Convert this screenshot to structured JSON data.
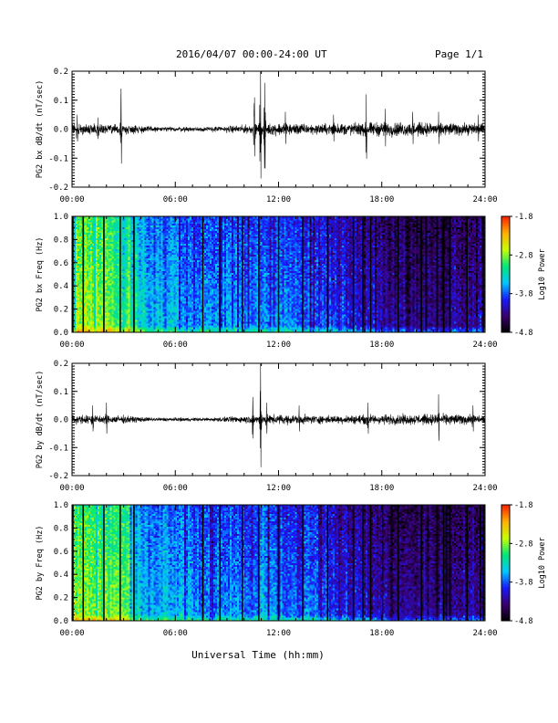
{
  "header": {
    "title": "2016/04/07  00:00-24:00 UT",
    "page": "Page 1/1"
  },
  "xaxis": {
    "label": "Universal Time (hh:mm)",
    "range_hours": [
      0,
      24
    ],
    "tick_labels": [
      "00:00",
      "06:00",
      "12:00",
      "18:00",
      "24:00"
    ]
  },
  "chart_data": [
    {
      "type": "line",
      "id": "bx-dbdt",
      "ylabel": "PG2 bx dB/dt (nT/sec)",
      "ylim": [
        -0.2,
        0.2
      ],
      "yticks": [
        "-0.2",
        "-0.1",
        "0.0",
        "0.1",
        "0.2"
      ],
      "bursts": [
        {
          "t": 0.3,
          "a": 0.05
        },
        {
          "t": 1.5,
          "a": 0.04
        },
        {
          "t": 2.85,
          "a": 0.14
        },
        {
          "t": 10.6,
          "a": 0.11
        },
        {
          "t": 10.95,
          "a": 0.2
        },
        {
          "t": 11.2,
          "a": 0.16
        },
        {
          "t": 12.4,
          "a": 0.06
        },
        {
          "t": 15.2,
          "a": 0.05
        },
        {
          "t": 17.1,
          "a": 0.12
        },
        {
          "t": 18.2,
          "a": 0.07
        },
        {
          "t": 19.8,
          "a": 0.06
        },
        {
          "t": 21.3,
          "a": 0.06
        },
        {
          "t": 23.6,
          "a": 0.05
        }
      ],
      "noise_envelope": [
        [
          0,
          0.02
        ],
        [
          2,
          0.02
        ],
        [
          3.5,
          0.018
        ],
        [
          5,
          0.01
        ],
        [
          8,
          0.01
        ],
        [
          10,
          0.016
        ],
        [
          12,
          0.025
        ],
        [
          14,
          0.02
        ],
        [
          18,
          0.028
        ],
        [
          22,
          0.025
        ],
        [
          24,
          0.022
        ]
      ]
    },
    {
      "type": "heatmap",
      "id": "bx-spectrogram",
      "ylabel": "PG2 bx Freq (Hz)",
      "ylim": [
        0,
        1.0
      ],
      "yticks": [
        "0.0",
        "0.2",
        "0.4",
        "0.6",
        "0.8",
        "1.0"
      ],
      "colorbar": {
        "label": "Log10 Power",
        "range": [
          -4.8,
          -1.8
        ],
        "ticks": [
          "-1.8",
          "-2.8",
          "-3.8",
          "-4.8"
        ],
        "colors": [
          "#000000",
          "#3a006e",
          "#1818ff",
          "#00c8ff",
          "#00e878",
          "#c8ff00",
          "#ffb000",
          "#ff2000"
        ]
      },
      "dark_lines_hours": [
        0.05,
        0.65,
        1.85,
        2.8,
        3.6,
        7.6,
        8.6,
        9.9,
        10.85,
        12.0,
        13.4,
        14.85,
        16.35,
        16.9,
        17.35,
        18.95,
        20.3,
        21.6,
        22.95,
        23.9
      ],
      "power_profile": [
        [
          0,
          -2.9
        ],
        [
          3.3,
          -3.0
        ],
        [
          4.5,
          -3.45
        ],
        [
          8,
          -3.6
        ],
        [
          12,
          -3.6
        ],
        [
          15,
          -3.85
        ],
        [
          17,
          -4.05
        ],
        [
          20,
          -4.25
        ],
        [
          24,
          -4.25
        ]
      ]
    },
    {
      "type": "line",
      "id": "by-dbdt",
      "ylabel": "PG2 by dB/dt (nT/sec)",
      "ylim": [
        -0.2,
        0.2
      ],
      "yticks": [
        "-0.2",
        "-0.1",
        "0.0",
        "0.1",
        "0.2"
      ],
      "bursts": [
        {
          "t": 1.2,
          "a": 0.05
        },
        {
          "t": 2.0,
          "a": 0.06
        },
        {
          "t": 10.5,
          "a": 0.08
        },
        {
          "t": 10.95,
          "a": 0.2
        },
        {
          "t": 11.3,
          "a": 0.06
        },
        {
          "t": 13.2,
          "a": 0.05
        },
        {
          "t": 17.2,
          "a": 0.06
        },
        {
          "t": 21.3,
          "a": 0.09
        },
        {
          "t": 23.3,
          "a": 0.05
        }
      ],
      "noise_envelope": [
        [
          0,
          0.018
        ],
        [
          3,
          0.016
        ],
        [
          4.5,
          0.008
        ],
        [
          8,
          0.007
        ],
        [
          10,
          0.014
        ],
        [
          12,
          0.02
        ],
        [
          15,
          0.016
        ],
        [
          18,
          0.02
        ],
        [
          22,
          0.022
        ],
        [
          24,
          0.018
        ]
      ]
    },
    {
      "type": "heatmap",
      "id": "by-spectrogram",
      "ylabel": "PG2 by Freq (Hz)",
      "ylim": [
        0,
        1.0
      ],
      "yticks": [
        "0.0",
        "0.2",
        "0.4",
        "0.6",
        "0.8",
        "1.0"
      ],
      "colorbar": {
        "label": "Log10 Power",
        "range": [
          -4.8,
          -1.8
        ],
        "ticks": [
          "-1.8",
          "-2.8",
          "-3.8",
          "-4.8"
        ],
        "colors": [
          "#000000",
          "#3a006e",
          "#1818ff",
          "#00c8ff",
          "#00e878",
          "#c8ff00",
          "#ffb000",
          "#ff2000"
        ]
      },
      "dark_lines_hours": [
        0.05,
        0.65,
        1.85,
        2.8,
        3.6,
        7.6,
        8.6,
        9.9,
        10.85,
        12.0,
        13.4,
        14.85,
        16.35,
        16.9,
        17.35,
        18.95,
        20.3,
        21.6,
        22.95,
        23.9
      ],
      "power_profile": [
        [
          0,
          -2.95
        ],
        [
          3.3,
          -3.05
        ],
        [
          4.5,
          -3.5
        ],
        [
          8,
          -3.6
        ],
        [
          12,
          -3.65
        ],
        [
          15,
          -3.85
        ],
        [
          17,
          -4.1
        ],
        [
          20,
          -4.3
        ],
        [
          24,
          -4.25
        ]
      ]
    }
  ]
}
